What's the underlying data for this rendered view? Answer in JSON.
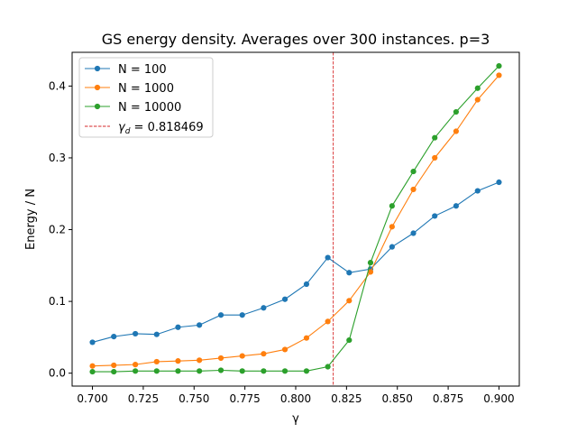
{
  "chart_data": {
    "type": "line",
    "title": "GS energy density. Averages over 300 instances. p=3",
    "xlabel": "γ",
    "ylabel": "Energy / N",
    "xlim": [
      0.69,
      0.91
    ],
    "ylim": [
      -0.018,
      0.447
    ],
    "xticks": [
      0.7,
      0.725,
      0.75,
      0.775,
      0.8,
      0.825,
      0.85,
      0.875,
      0.9
    ],
    "xtick_labels": [
      "0.700",
      "0.725",
      "0.750",
      "0.775",
      "0.800",
      "0.825",
      "0.850",
      "0.875",
      "0.900"
    ],
    "yticks": [
      0.0,
      0.1,
      0.2,
      0.3,
      0.4
    ],
    "ytick_labels": [
      "0.0",
      "0.1",
      "0.2",
      "0.3",
      "0.4"
    ],
    "grid": false,
    "legend_position": "top-left",
    "x": [
      0.7,
      0.7105,
      0.7211,
      0.7316,
      0.7421,
      0.7526,
      0.7632,
      0.7737,
      0.7842,
      0.7947,
      0.8053,
      0.8158,
      0.8263,
      0.8368,
      0.8474,
      0.8579,
      0.8684,
      0.8789,
      0.8895,
      0.9
    ],
    "series": [
      {
        "name": "N = 100",
        "color": "#1f77b4",
        "values": [
          0.043,
          0.051,
          0.055,
          0.054,
          0.064,
          0.067,
          0.081,
          0.081,
          0.091,
          0.103,
          0.124,
          0.161,
          0.14,
          0.145,
          0.176,
          0.195,
          0.219,
          0.233,
          0.254,
          0.266
        ]
      },
      {
        "name": "N = 1000",
        "color": "#ff7f0e",
        "values": [
          0.01,
          0.011,
          0.012,
          0.016,
          0.017,
          0.018,
          0.021,
          0.024,
          0.027,
          0.033,
          0.049,
          0.072,
          0.101,
          0.141,
          0.204,
          0.256,
          0.3,
          0.337,
          0.381,
          0.415
        ]
      },
      {
        "name": "N = 10000",
        "color": "#2ca02c",
        "values": [
          0.002,
          0.002,
          0.003,
          0.003,
          0.003,
          0.003,
          0.004,
          0.003,
          0.003,
          0.003,
          0.003,
          0.009,
          0.046,
          0.154,
          0.233,
          0.281,
          0.328,
          0.364,
          0.397,
          0.428
        ]
      }
    ],
    "vline": {
      "x": 0.818469,
      "label_symbol": "γ",
      "label_sub": "d",
      "label_rest": " = 0.818469",
      "color": "#d62728"
    }
  }
}
